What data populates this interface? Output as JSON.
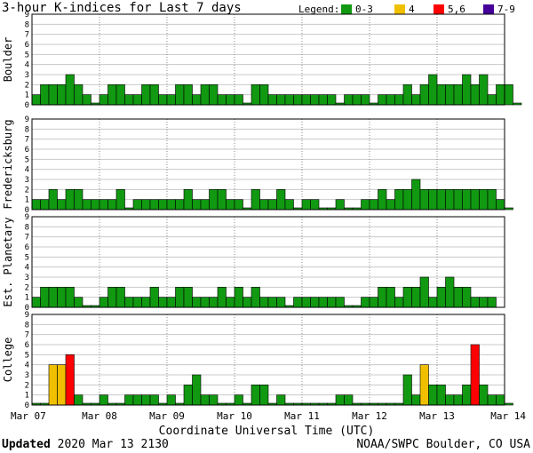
{
  "title": "3-hour K-indices for Last 7 days",
  "legend": {
    "label": "Legend:",
    "items": [
      {
        "label": "0-3",
        "color": "#119911"
      },
      {
        "label": "4",
        "color": "#f0c000"
      },
      {
        "label": "5,6",
        "color": "#ff0000"
      },
      {
        "label": "7-9",
        "color": "#440099"
      }
    ]
  },
  "footer": {
    "updated_label": "Updated",
    "updated_value": "2020 Mar 13 2130",
    "source": "NOAA/SWPC Boulder, CO USA"
  },
  "chart_data": {
    "type": "bar",
    "xlabel": "Coordinate Universal Time (UTC)",
    "x_ticks": [
      "Mar 07",
      "Mar 08",
      "Mar 09",
      "Mar 10",
      "Mar 11",
      "Mar 12",
      "Mar 13",
      "Mar 14"
    ],
    "y_ticks": [
      "0",
      "1",
      "2",
      "3",
      "4",
      "5",
      "6",
      "7",
      "8",
      "9"
    ],
    "ylim": [
      0,
      9
    ],
    "interval_hours": 3,
    "colors": {
      "low": "#119911",
      "k4": "#f0c000",
      "k56": "#ff0000",
      "k79": "#440099"
    },
    "series": [
      {
        "name": "Boulder",
        "values": [
          1,
          2,
          2,
          2,
          3,
          2,
          1,
          0,
          1,
          2,
          2,
          1,
          1,
          2,
          2,
          1,
          1,
          2,
          2,
          1,
          2,
          2,
          1,
          1,
          1,
          0,
          2,
          2,
          1,
          1,
          1,
          1,
          1,
          1,
          1,
          1,
          0,
          1,
          1,
          1,
          0,
          1,
          1,
          1,
          2,
          1,
          2,
          3,
          2,
          2,
          2,
          3,
          2,
          3,
          1,
          2,
          2,
          0
        ]
      },
      {
        "name": "Fredericksburg",
        "values": [
          1,
          1,
          2,
          1,
          2,
          2,
          1,
          1,
          1,
          1,
          2,
          0,
          1,
          1,
          1,
          1,
          1,
          1,
          2,
          1,
          1,
          2,
          2,
          1,
          1,
          0,
          2,
          1,
          1,
          2,
          1,
          0,
          1,
          1,
          0,
          0,
          1,
          0,
          0,
          1,
          1,
          2,
          1,
          2,
          2,
          3,
          2,
          2,
          2,
          2,
          2,
          2,
          2,
          2,
          2,
          1,
          0
        ]
      },
      {
        "name": "Est. Planetary",
        "values": [
          1,
          2,
          2,
          2,
          2,
          1,
          0,
          0,
          1,
          2,
          2,
          1,
          1,
          1,
          2,
          1,
          1,
          2,
          2,
          1,
          1,
          1,
          2,
          1,
          2,
          1,
          2,
          1,
          1,
          1,
          0,
          1,
          1,
          1,
          1,
          1,
          1,
          0,
          0,
          1,
          1,
          2,
          2,
          1,
          2,
          2,
          3,
          1,
          2,
          3,
          2,
          2,
          1,
          1,
          1
        ]
      },
      {
        "name": "College",
        "values": [
          0,
          0,
          4,
          4,
          5,
          1,
          0,
          0,
          1,
          0,
          0,
          1,
          1,
          1,
          1,
          0,
          1,
          0,
          2,
          3,
          1,
          1,
          0,
          0,
          1,
          0,
          2,
          2,
          0,
          1,
          0,
          0,
          0,
          0,
          0,
          0,
          1,
          1,
          0,
          0,
          0,
          0,
          0,
          0,
          3,
          1,
          4,
          2,
          2,
          1,
          1,
          2,
          6,
          2,
          1,
          1,
          0
        ]
      }
    ]
  }
}
